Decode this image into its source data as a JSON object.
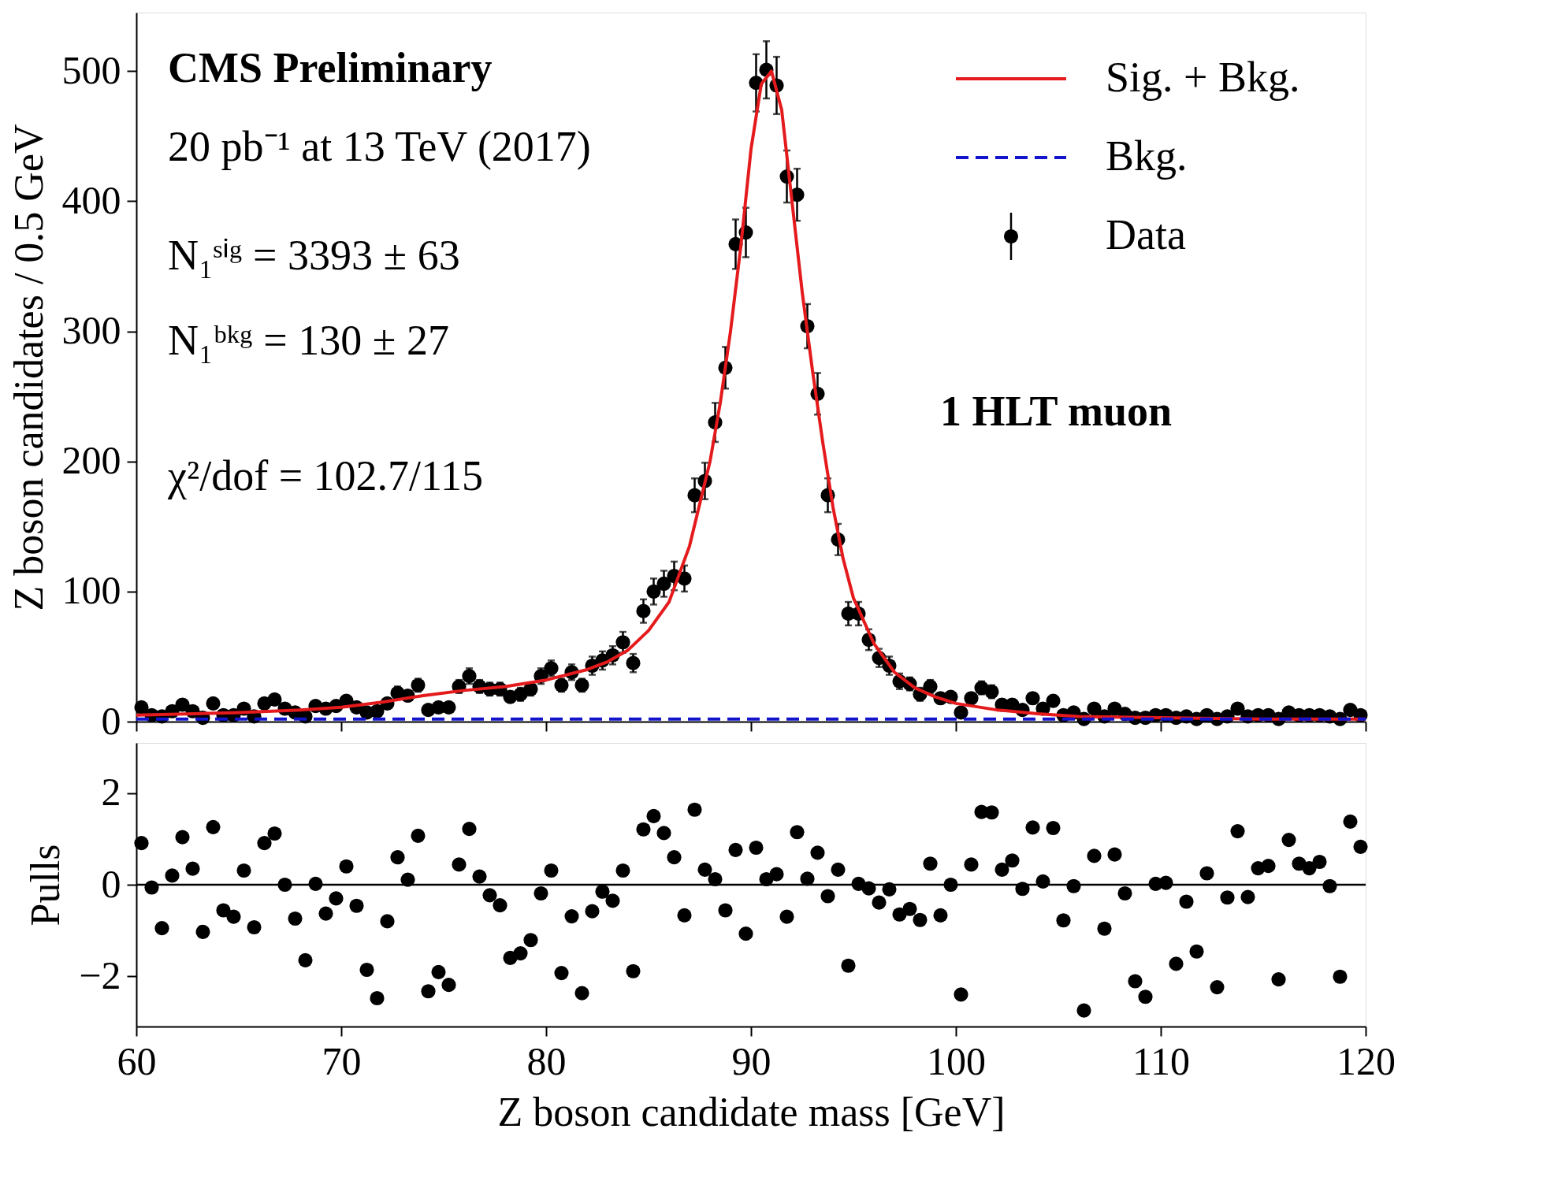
{
  "chart_data": [
    {
      "type": "scatter",
      "ylabel": "Z boson candidates / 0.5 GeV",
      "xlim": [
        60,
        120
      ],
      "xticks": [
        60,
        70,
        80,
        90,
        100,
        110,
        120
      ],
      "ylim": [
        0,
        545
      ],
      "yticks": [
        0,
        100,
        200,
        300,
        400,
        500
      ],
      "tick_labels": "y",
      "legend": "top right",
      "annotations": [
        "CMS Preliminary",
        "20 pb⁻¹ at 13 TeV (2017)",
        "N₁ˢⁱᵍ  =  3393 ± 63",
        "N₁ᵇᵏᵍ  =  130 ± 27",
        "χ²/dof  =  102.7/115",
        "1 HLT muon"
      ],
      "series": [
        {
          "name": "Sig. + Bkg.",
          "type": "line",
          "line_style": "solid",
          "color": "#e41a1c",
          "x": [
            60,
            65,
            68,
            70,
            72,
            74,
            76,
            78,
            80,
            82,
            83,
            84,
            85,
            86,
            87,
            88,
            88.5,
            89,
            89.5,
            90,
            90.5,
            91,
            91.5,
            92,
            92.5,
            93,
            93.5,
            94,
            94.5,
            95,
            96,
            97,
            98,
            99,
            100,
            102,
            104,
            106,
            110,
            115,
            120
          ],
          "values": [
            5,
            7,
            9,
            11,
            15,
            20,
            24,
            27,
            32,
            40,
            46,
            55,
            70,
            92,
            135,
            200,
            245,
            300,
            365,
            440,
            490,
            500,
            470,
            400,
            330,
            270,
            215,
            165,
            125,
            95,
            60,
            38,
            26,
            19,
            14,
            9,
            6,
            4,
            3,
            2,
            2
          ]
        },
        {
          "name": "Bkg.",
          "type": "line",
          "line_style": "dashed",
          "color": "#1414cc",
          "x": [
            60,
            120
          ],
          "values": [
            2,
            2
          ]
        },
        {
          "name": "Data",
          "type": "scatter",
          "marker": "circle",
          "color": "#000000",
          "x": [
            60.25,
            60.75,
            61.25,
            61.75,
            62.25,
            62.75,
            63.25,
            63.75,
            64.25,
            64.75,
            65.25,
            65.75,
            66.25,
            66.75,
            67.25,
            67.75,
            68.25,
            68.75,
            69.25,
            69.75,
            70.25,
            70.75,
            71.25,
            71.75,
            72.25,
            72.75,
            73.25,
            73.75,
            74.25,
            74.75,
            75.25,
            75.75,
            76.25,
            76.75,
            77.25,
            77.75,
            78.25,
            78.75,
            79.25,
            79.75,
            80.25,
            80.75,
            81.25,
            81.75,
            82.25,
            82.75,
            83.25,
            83.75,
            84.25,
            84.75,
            85.25,
            85.75,
            86.25,
            86.75,
            87.25,
            87.75,
            88.25,
            88.75,
            89.25,
            89.75,
            90.25,
            90.75,
            91.25,
            91.75,
            92.25,
            92.75,
            93.25,
            93.75,
            94.25,
            94.75,
            95.25,
            95.75,
            96.25,
            96.75,
            97.25,
            97.75,
            98.25,
            98.75,
            99.25,
            99.75,
            100.25,
            100.75,
            101.25,
            101.75,
            102.25,
            102.75,
            103.25,
            103.75,
            104.25,
            104.75,
            105.25,
            105.75,
            106.25,
            106.75,
            107.25,
            107.75,
            108.25,
            108.75,
            109.25,
            109.75,
            110.25,
            110.75,
            111.25,
            111.75,
            112.25,
            112.75,
            113.25,
            113.75,
            114.25,
            114.75,
            115.25,
            115.75,
            116.25,
            116.75,
            117.25,
            117.75,
            118.25,
            118.75,
            119.25,
            119.75
          ],
          "values": [
            11,
            5,
            4,
            8,
            13,
            8,
            3,
            14,
            5,
            5,
            10,
            4,
            14,
            17,
            10,
            7,
            4,
            12,
            10,
            12,
            16,
            11,
            7,
            8,
            14,
            22,
            20,
            28,
            9,
            11,
            11,
            27,
            35,
            27,
            25,
            25,
            19,
            21,
            25,
            35,
            41,
            28,
            38,
            28,
            43,
            47,
            51,
            61,
            45,
            85,
            100,
            106,
            112,
            110,
            174,
            185,
            230,
            272,
            367,
            376,
            491,
            501,
            489,
            419,
            405,
            304,
            252,
            174,
            140,
            83,
            83,
            63,
            49,
            43,
            31,
            29,
            21,
            27,
            18,
            19,
            7,
            18,
            26,
            23,
            13,
            13,
            9,
            18,
            10,
            16,
            5,
            7,
            2,
            10,
            4,
            10,
            6,
            3,
            3,
            5,
            5,
            3,
            4,
            2,
            5,
            2,
            4,
            10,
            4,
            5,
            5,
            2,
            7,
            5,
            5,
            5,
            4,
            2,
            9,
            5
          ],
          "errors": [
            3,
            2,
            2,
            3,
            4,
            3,
            2,
            4,
            2,
            2,
            3,
            2,
            4,
            4,
            3,
            3,
            2,
            3,
            3,
            3,
            4,
            3,
            3,
            3,
            4,
            5,
            4,
            5,
            3,
            3,
            3,
            5,
            6,
            5,
            5,
            5,
            4,
            5,
            5,
            6,
            6,
            5,
            6,
            5,
            7,
            7,
            7,
            8,
            7,
            9,
            10,
            10,
            11,
            10,
            13,
            14,
            15,
            16,
            19,
            19,
            22,
            22,
            22,
            20,
            20,
            17,
            16,
            13,
            12,
            9,
            9,
            8,
            7,
            7,
            6,
            5,
            5,
            5,
            4,
            4,
            3,
            4,
            5,
            5,
            4,
            4,
            3,
            4,
            3,
            4,
            2,
            3,
            1,
            3,
            2,
            3,
            2,
            2,
            2,
            2,
            2,
            2,
            2,
            1,
            2,
            1,
            2,
            3,
            2,
            2,
            2,
            1,
            3,
            2,
            2,
            2,
            2,
            1,
            3,
            2
          ]
        }
      ]
    },
    {
      "type": "scatter",
      "xlabel": "Z boson candidate mass [GeV]",
      "ylabel": "Pulls",
      "xlim": [
        60,
        120
      ],
      "xticks": [
        60,
        70,
        80,
        90,
        100,
        110,
        120
      ],
      "ylim": [
        -3.1,
        3.1
      ],
      "yticks": [
        -2,
        0,
        2
      ],
      "marker": "circle",
      "color": "#000000",
      "ref_lines": [
        {
          "axis": "y",
          "value": 0,
          "color": "#000000"
        }
      ],
      "x": [
        60.25,
        60.75,
        61.25,
        61.75,
        62.25,
        62.75,
        63.25,
        63.75,
        64.25,
        64.75,
        65.25,
        65.75,
        66.25,
        66.75,
        67.25,
        67.75,
        68.25,
        68.75,
        69.25,
        69.75,
        70.25,
        70.75,
        71.25,
        71.75,
        72.25,
        72.75,
        73.25,
        73.75,
        74.25,
        74.75,
        75.25,
        75.75,
        76.25,
        76.75,
        77.25,
        77.75,
        78.25,
        78.75,
        79.25,
        79.75,
        80.25,
        80.75,
        81.25,
        81.75,
        82.25,
        82.75,
        83.25,
        83.75,
        84.25,
        84.75,
        85.25,
        85.75,
        86.25,
        86.75,
        87.25,
        87.75,
        88.25,
        88.75,
        89.25,
        89.75,
        90.25,
        90.75,
        91.25,
        91.75,
        92.25,
        92.75,
        93.25,
        93.75,
        94.25,
        94.75,
        95.25,
        95.75,
        96.25,
        96.75,
        97.25,
        97.75,
        98.25,
        98.75,
        99.25,
        99.75,
        100.25,
        100.75,
        101.25,
        101.75,
        102.25,
        102.75,
        103.25,
        103.75,
        104.25,
        104.75,
        105.25,
        105.75,
        106.25,
        106.75,
        107.25,
        107.75,
        108.25,
        108.75,
        109.25,
        109.75,
        110.25,
        110.75,
        111.25,
        111.75,
        112.25,
        112.75,
        113.25,
        113.75,
        114.25,
        114.75,
        115.25,
        115.75,
        116.25,
        116.75,
        117.25,
        117.75,
        118.25,
        118.75,
        119.25,
        119.75
      ],
      "values": [
        0.91,
        -0.06,
        -0.95,
        0.2,
        1.04,
        0.35,
        -1.03,
        1.26,
        -0.56,
        -0.7,
        0.31,
        -0.93,
        0.91,
        1.12,
        0,
        -0.74,
        -1.65,
        0.02,
        -0.63,
        -0.3,
        0.4,
        -0.46,
        -1.86,
        -2.48,
        -0.8,
        0.6,
        0.11,
        1.07,
        -2.33,
        -1.91,
        -2.19,
        0.44,
        1.22,
        0.18,
        -0.23,
        -0.45,
        -1.6,
        -1.5,
        -1.21,
        -0.19,
        0.31,
        -1.93,
        -0.69,
        -2.37,
        -0.58,
        -0.15,
        -0.35,
        0.31,
        -1.89,
        1.21,
        1.5,
        1.13,
        0.6,
        -0.67,
        1.64,
        0.33,
        0.12,
        -0.56,
        0.76,
        -1.07,
        0.81,
        0.12,
        0.23,
        -0.7,
        1.15,
        0.13,
        0.7,
        -0.25,
        0.33,
        -1.77,
        0.02,
        -0.08,
        -0.39,
        -0.1,
        -0.65,
        -0.53,
        -0.77,
        0.46,
        -0.67,
        0,
        -2.4,
        0.44,
        1.59,
        1.58,
        0.33,
        0.53,
        -0.09,
        1.25,
        0.07,
        1.24,
        -0.78,
        -0.03,
        -2.75,
        0.63,
        -0.96,
        0.66,
        -0.19,
        -2.11,
        -2.45,
        0.02,
        0.04,
        -1.73,
        -0.37,
        -1.46,
        0.25,
        -2.24,
        -0.28,
        1.17,
        -0.27,
        0.36,
        0.41,
        -2.07,
        0.98,
        0.46,
        0.36,
        0.5,
        -0.03,
        -2.01,
        1.38,
        0.83
      ]
    }
  ]
}
